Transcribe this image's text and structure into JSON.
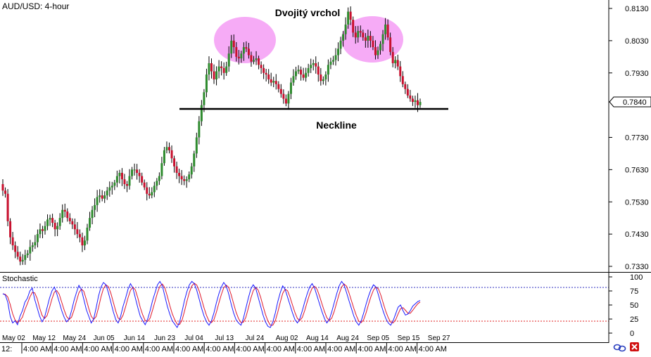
{
  "window": {
    "pair_label": "AUD/USD: 4-hour",
    "indicator_label": "Stochastic",
    "bottom_left_stub": "12:"
  },
  "annotations": {
    "double_top_label": "Dvojitý vrchol",
    "neckline_label": "Neckline"
  },
  "icons": {
    "link": "link-icon",
    "close": "close-icon"
  },
  "colors": {
    "bull_candle": "#2e8b2e",
    "bear_candle": "#c8102e",
    "wick": "#000000",
    "stoch_k": "#1a1aff",
    "stoch_d": "#e0182a",
    "level_80": "#3030c0",
    "level_20": "#e02020",
    "highlight": "#f49cf4",
    "axis_line": "#000000",
    "last_price_bg": "#ffffff"
  },
  "chart_data": [
    {
      "type": "candlestick",
      "title": "AUD/USD: 4-hour",
      "ylim": [
        0.7315,
        0.815
      ],
      "y_ticks": [
        "0.8130",
        "0.8030",
        "0.7930",
        "0.7840",
        "0.7730",
        "0.7630",
        "0.7530",
        "0.7430",
        "0.7330"
      ],
      "last_price": "0.7840",
      "x_ticks_dates": [
        "May 02",
        "May 12",
        "May 24",
        "Jun 05",
        "Jun 14",
        "Jun 23",
        "Jul 04",
        "Jul 13",
        "Jul 24",
        "Aug 02",
        "Aug 14",
        "Aug 24",
        "Sep 05",
        "Sep 15",
        "Sep 27"
      ],
      "x_ticks_times": [
        "4:00 AM",
        "4:00 AM",
        "4:00 AM",
        "4:00 AM",
        "4:00 AM",
        "4:00 AM",
        "4:00 AM",
        "4:00 AM",
        "4:00 AM",
        "4:00 AM",
        "4:00 AM",
        "4:00 AM",
        "4:00 AM",
        "4:00 AM"
      ],
      "series": [
        {
          "values": [
            0.7565,
            0.7555,
            0.747,
            0.742,
            0.7395,
            0.7375,
            0.736,
            0.7345,
            0.735,
            0.7365,
            0.737,
            0.739,
            0.7395,
            0.7405,
            0.743,
            0.7445,
            0.744,
            0.7455,
            0.7475,
            0.748,
            0.7465,
            0.7445,
            0.7455,
            0.748,
            0.7505,
            0.75,
            0.748,
            0.747,
            0.746,
            0.7445,
            0.743,
            0.742,
            0.7395,
            0.741,
            0.745,
            0.748,
            0.7505,
            0.752,
            0.7545,
            0.755,
            0.754,
            0.755,
            0.7565,
            0.7575,
            0.758,
            0.759,
            0.761,
            0.762,
            0.76,
            0.7585,
            0.758,
            0.761,
            0.763,
            0.763,
            0.762,
            0.761,
            0.759,
            0.7575,
            0.7555,
            0.755,
            0.756,
            0.758,
            0.7595,
            0.761,
            0.765,
            0.769,
            0.77,
            0.769,
            0.7665,
            0.764,
            0.762,
            0.761,
            0.76,
            0.7595,
            0.76,
            0.7615,
            0.764,
            0.768,
            0.773,
            0.778,
            0.783,
            0.787,
            0.7925,
            0.796,
            0.7935,
            0.791,
            0.7935,
            0.795,
            0.7945,
            0.793,
            0.795,
            0.799,
            0.803,
            0.801,
            0.798,
            0.7975,
            0.799,
            0.801,
            0.8005,
            0.7985,
            0.7965,
            0.797,
            0.7975,
            0.7955,
            0.7945,
            0.793,
            0.7925,
            0.791,
            0.79,
            0.7905,
            0.7895,
            0.788,
            0.7865,
            0.785,
            0.7835,
            0.7865,
            0.79,
            0.792,
            0.7935,
            0.794,
            0.7925,
            0.7915,
            0.793,
            0.7945,
            0.7955,
            0.796,
            0.795,
            0.7925,
            0.7905,
            0.791,
            0.7925,
            0.7955,
            0.7965,
            0.797,
            0.7985,
            0.8005,
            0.803,
            0.805,
            0.808,
            0.812,
            0.8095,
            0.8055,
            0.804,
            0.806,
            0.8055,
            0.804,
            0.803,
            0.8045,
            0.803,
            0.801,
            0.7985,
            0.8,
            0.802,
            0.805,
            0.808,
            0.804,
            0.7995,
            0.796,
            0.797,
            0.795,
            0.792,
            0.7895,
            0.788,
            0.786,
            0.785,
            0.784,
            0.7845,
            0.783,
            0.784
          ]
        }
      ]
    },
    {
      "type": "line",
      "title": "Stochastic",
      "ylim": [
        0,
        100
      ],
      "y_ticks": [
        "100",
        "75",
        "50",
        "25",
        "0"
      ],
      "levels": [
        80,
        20
      ],
      "series": [
        {
          "values": [
            70,
            68,
            55,
            30,
            18,
            22,
            15,
            30,
            40,
            55,
            62,
            75,
            80,
            60,
            45,
            30,
            20,
            28,
            45,
            62,
            75,
            82,
            70,
            55,
            40,
            28,
            20,
            25,
            40,
            58,
            72,
            85,
            78,
            60,
            42,
            30,
            18,
            25,
            45,
            66,
            82,
            90,
            86,
            72,
            55,
            38,
            24,
            18,
            30,
            48,
            62,
            78,
            88,
            80,
            62,
            45,
            30,
            22,
            15,
            25,
            40,
            58,
            72,
            86,
            92,
            84,
            66,
            48,
            34,
            22,
            16,
            10,
            20,
            38,
            58,
            74,
            86,
            92,
            88,
            76,
            60,
            44,
            30,
            20,
            14,
            22,
            36,
            54,
            70,
            82,
            90,
            84,
            70,
            52,
            36,
            24,
            18,
            14,
            26,
            44,
            62,
            78,
            86,
            80,
            64,
            48,
            32,
            20,
            12,
            10,
            20,
            36,
            56,
            72,
            84,
            78,
            64,
            50,
            36,
            24,
            18,
            26,
            40,
            56,
            70,
            82,
            88,
            80,
            66,
            52,
            38,
            26,
            18,
            24,
            38,
            54,
            70,
            84,
            92,
            86,
            72,
            58,
            44,
            30,
            20,
            14,
            22,
            36,
            52,
            66,
            78,
            86,
            82,
            68,
            52,
            38,
            26,
            18,
            14,
            22,
            34,
            46,
            50,
            40,
            32,
            34,
            40,
            48,
            52,
            56,
            58
          ]
        }
      ]
    }
  ]
}
